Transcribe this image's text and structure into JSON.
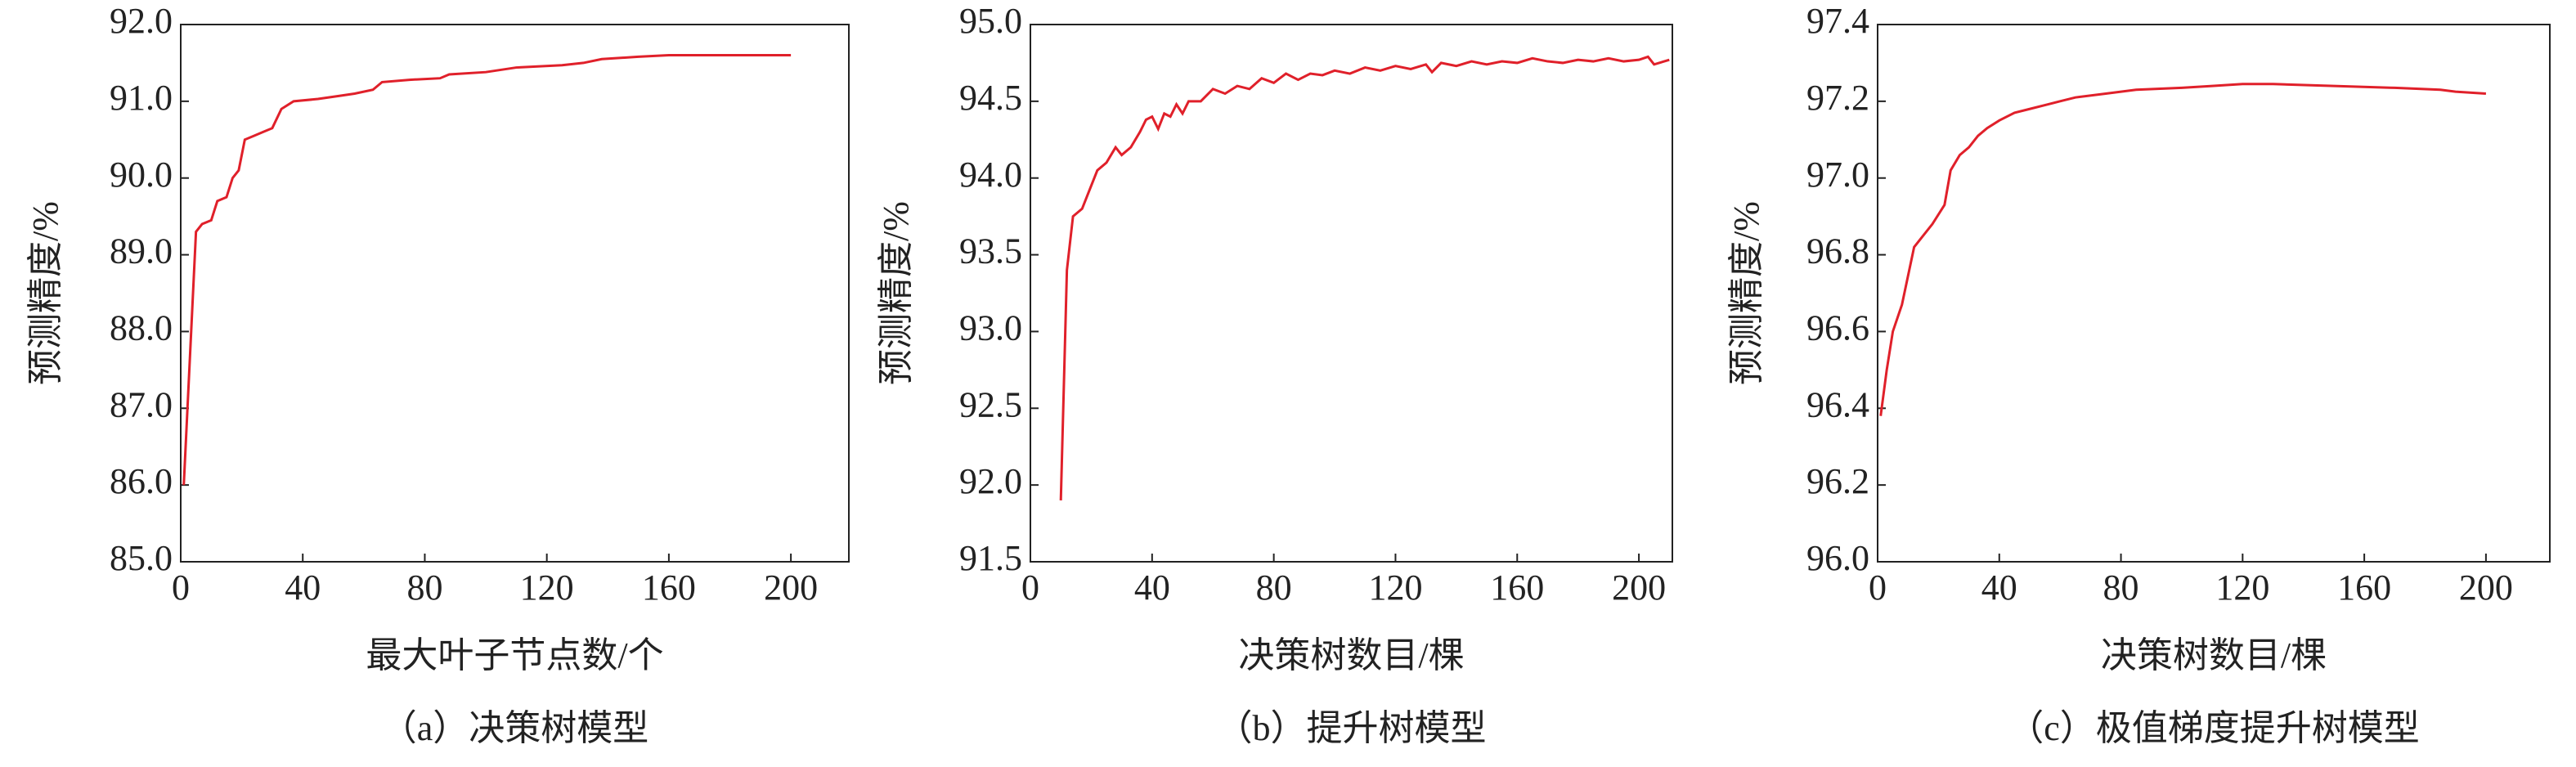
{
  "chart_data": [
    {
      "type": "line",
      "title": "（a）决策树模型",
      "xlabel": "最大叶子节点数/个",
      "ylabel": "预测精度/%",
      "color": "#e0202a",
      "x": [
        1,
        5,
        7,
        10,
        12,
        15,
        17,
        19,
        21,
        24,
        27,
        30,
        33,
        37,
        45,
        52,
        57,
        63,
        66,
        75,
        85,
        88,
        100,
        110,
        125,
        132,
        138,
        150,
        160,
        200
      ],
      "values": [
        86.0,
        89.3,
        89.4,
        89.45,
        89.7,
        89.75,
        90.0,
        90.1,
        90.5,
        90.55,
        90.6,
        90.65,
        90.9,
        91.0,
        91.03,
        91.07,
        91.1,
        91.15,
        91.25,
        91.28,
        91.3,
        91.35,
        91.38,
        91.44,
        91.47,
        91.5,
        91.55,
        91.58,
        91.6,
        91.6
      ],
      "xlim": [
        0,
        219
      ],
      "xticks": [
        0,
        40,
        80,
        120,
        160,
        200
      ],
      "ylim": [
        85,
        92
      ],
      "yticks": [
        {
          "value": 85,
          "label": "85.0"
        },
        {
          "value": 86,
          "label": "86.0"
        },
        {
          "value": 87,
          "label": "87.0"
        },
        {
          "value": 88,
          "label": "88.0"
        },
        {
          "value": 89,
          "label": "89.0"
        },
        {
          "value": 90,
          "label": "90.0"
        },
        {
          "value": 91,
          "label": "91.0"
        },
        {
          "value": 92,
          "label": "92.0"
        }
      ]
    },
    {
      "type": "line",
      "title": "（b）提升树模型",
      "xlabel": "决策树数目/棵",
      "ylabel": "预测精度/%",
      "color": "#e0202a",
      "x": [
        10,
        12,
        14,
        17,
        19,
        22,
        25,
        28,
        30,
        33,
        36,
        38,
        40,
        42,
        44,
        46,
        48,
        50,
        52,
        56,
        60,
        64,
        68,
        72,
        76,
        80,
        84,
        88,
        92,
        96,
        100,
        105,
        110,
        115,
        120,
        125,
        130,
        132,
        135,
        140,
        145,
        150,
        155,
        160,
        165,
        170,
        175,
        180,
        185,
        190,
        195,
        200,
        203,
        205,
        210
      ],
      "values": [
        91.9,
        93.4,
        93.75,
        93.8,
        93.9,
        94.05,
        94.1,
        94.2,
        94.15,
        94.2,
        94.3,
        94.38,
        94.4,
        94.32,
        94.42,
        94.4,
        94.48,
        94.42,
        94.5,
        94.5,
        94.58,
        94.55,
        94.6,
        94.58,
        94.65,
        94.62,
        94.68,
        94.64,
        94.68,
        94.67,
        94.7,
        94.68,
        94.72,
        94.7,
        94.73,
        94.71,
        94.74,
        94.69,
        94.75,
        94.73,
        94.76,
        94.74,
        94.76,
        94.75,
        94.78,
        94.76,
        94.75,
        94.77,
        94.76,
        94.78,
        94.76,
        94.77,
        94.79,
        94.74,
        94.77
      ],
      "xlim": [
        0,
        211
      ],
      "xticks": [
        0,
        40,
        80,
        120,
        160,
        200
      ],
      "ylim": [
        91.5,
        95
      ],
      "yticks": [
        91.5,
        {
          "value": 92,
          "label": "92.0"
        },
        92.5,
        {
          "value": 93,
          "label": "93.0"
        },
        93.5,
        {
          "value": 94,
          "label": "94.0"
        },
        94.5,
        {
          "value": 95,
          "label": "95.0"
        }
      ]
    },
    {
      "type": "line",
      "title": "（c）极值梯度提升树模型",
      "xlabel": "决策树数目/棵",
      "ylabel": "预测精度/%",
      "color": "#e0202a",
      "x": [
        1,
        3,
        5,
        8,
        12,
        15,
        18,
        22,
        24,
        27,
        30,
        33,
        36,
        40,
        45,
        50,
        55,
        60,
        65,
        75,
        85,
        100,
        110,
        120,
        130,
        150,
        170,
        185,
        190,
        200
      ],
      "values": [
        96.38,
        96.5,
        96.6,
        96.67,
        96.82,
        96.85,
        96.88,
        96.93,
        97.02,
        97.06,
        97.08,
        97.11,
        97.13,
        97.15,
        97.17,
        97.18,
        97.19,
        97.2,
        97.21,
        97.22,
        97.23,
        97.235,
        97.24,
        97.245,
        97.245,
        97.24,
        97.235,
        97.23,
        97.225,
        97.22
      ],
      "xlim": [
        0,
        221
      ],
      "xticks": [
        0,
        40,
        80,
        120,
        160,
        200
      ],
      "ylim": [
        96,
        97.4
      ],
      "yticks": [
        {
          "value": 96,
          "label": "96.0"
        },
        96.2,
        96.4,
        96.6,
        96.8,
        {
          "value": 97,
          "label": "97.0"
        },
        97.2,
        97.4
      ]
    }
  ]
}
